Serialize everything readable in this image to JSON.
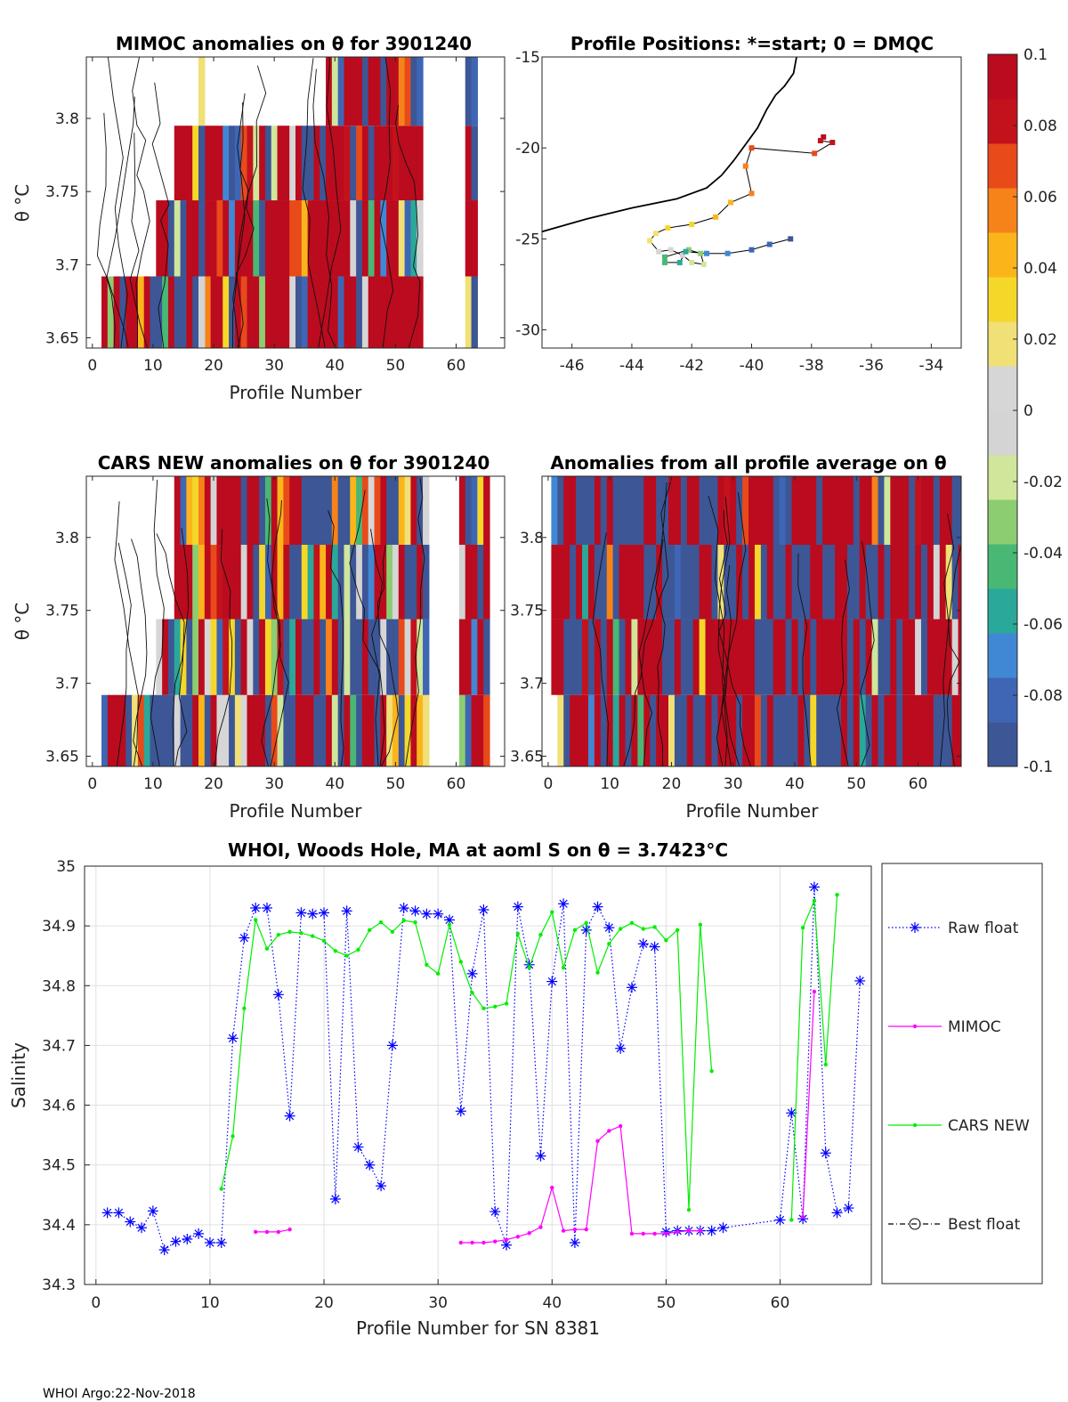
{
  "footer": "WHOI Argo:22-Nov-2018",
  "chart_data": [
    {
      "type": "heatmap",
      "title": "MIMOC anomalies on θ  for 3901240",
      "xlabel": "Profile Number",
      "ylabel": "θ °C",
      "xlim": [
        -1,
        68
      ],
      "ylim": [
        3.643,
        3.842
      ],
      "xticks": [
        0,
        10,
        20,
        30,
        40,
        50,
        60
      ],
      "yticks": [
        3.65,
        3.7,
        3.75,
        3.8
      ],
      "ytick_labels": [
        "3.65",
        "3.7",
        "3.75",
        "3.8"
      ],
      "theta_bands": [
        3.667,
        3.717,
        3.767,
        3.817
      ],
      "profile_ranges": [
        [
          2,
          54
        ],
        [
          11,
          54
        ],
        [
          14,
          54
        ],
        [
          39,
          54
        ]
      ],
      "extra_columns": [
        18,
        62,
        63
      ]
    },
    {
      "type": "scatter",
      "title": "Profile Positions: *=start; 0 = DMQC",
      "xlim": [
        -47,
        -33
      ],
      "ylim": [
        -31,
        -15
      ],
      "xticks": [
        -46,
        -44,
        -42,
        -40,
        -38,
        -36,
        -34
      ],
      "yticks": [
        -15,
        -20,
        -25,
        -30
      ],
      "track": [
        [
          -37.6,
          -19.4
        ],
        [
          -37.7,
          -19.6
        ],
        [
          -37.3,
          -19.7
        ],
        [
          -37.9,
          -20.3
        ],
        [
          -40.0,
          -20.0
        ],
        [
          -40.2,
          -21.0
        ],
        [
          -40.0,
          -22.5
        ],
        [
          -40.7,
          -23.0
        ],
        [
          -41.2,
          -23.8
        ],
        [
          -42.0,
          -24.2
        ],
        [
          -42.8,
          -24.4
        ],
        [
          -43.2,
          -24.7
        ],
        [
          -43.4,
          -25.1
        ],
        [
          -43.1,
          -25.7
        ],
        [
          -42.7,
          -25.6
        ],
        [
          -42.3,
          -25.9
        ],
        [
          -42.0,
          -26.3
        ],
        [
          -41.6,
          -26.4
        ],
        [
          -41.7,
          -25.8
        ],
        [
          -42.1,
          -25.6
        ],
        [
          -42.9,
          -26.0
        ],
        [
          -42.9,
          -26.3
        ],
        [
          -42.4,
          -26.3
        ],
        [
          -42.2,
          -25.7
        ],
        [
          -41.5,
          -25.8
        ],
        [
          -40.8,
          -25.8
        ],
        [
          -40.0,
          -25.6
        ],
        [
          -39.4,
          -25.3
        ],
        [
          -38.7,
          -25.0
        ]
      ],
      "coastline": [
        [
          -47,
          -24.6
        ],
        [
          -45.5,
          -23.9
        ],
        [
          -44.0,
          -23.3
        ],
        [
          -42.5,
          -22.8
        ],
        [
          -41.5,
          -22.2
        ],
        [
          -41.0,
          -21.5
        ],
        [
          -40.6,
          -20.7
        ],
        [
          -40.2,
          -19.8
        ],
        [
          -39.8,
          -18.9
        ],
        [
          -39.5,
          -17.9
        ],
        [
          -39.2,
          -17.1
        ],
        [
          -38.9,
          -16.6
        ],
        [
          -38.6,
          -15.9
        ],
        [
          -38.5,
          -15.0
        ]
      ]
    },
    {
      "type": "heatmap",
      "title": "CARS NEW anomalies on θ for 3901240",
      "xlabel": "Profile Number",
      "ylabel": "θ °C",
      "xlim": [
        -1,
        68
      ],
      "ylim": [
        3.643,
        3.842
      ],
      "xticks": [
        0,
        10,
        20,
        30,
        40,
        50,
        60
      ],
      "yticks": [
        3.65,
        3.7,
        3.75,
        3.8
      ],
      "ytick_labels": [
        "3.65",
        "3.7",
        "3.75",
        "3.8"
      ],
      "profile_ranges": [
        [
          2,
          55
        ],
        [
          11,
          55
        ],
        [
          14,
          55
        ],
        [
          14,
          55
        ]
      ],
      "extra_columns": [
        61,
        62,
        63,
        64,
        65
      ]
    },
    {
      "type": "heatmap",
      "title": "Anomalies from all profile average on θ",
      "xlabel": "Profile Number",
      "xlim": [
        -1,
        67
      ],
      "ylim": [
        3.643,
        3.842
      ],
      "xticks": [
        0,
        10,
        20,
        30,
        40,
        50,
        60
      ],
      "yticks": [
        3.65,
        3.7,
        3.75,
        3.8
      ],
      "ytick_labels": [
        "3.65",
        "3.7",
        "3.75",
        "3.8"
      ],
      "profile_ranges": [
        [
          2,
          67
        ],
        [
          1,
          67
        ],
        [
          1,
          67
        ],
        [
          1,
          67
        ]
      ]
    },
    {
      "type": "colorbar",
      "range": [
        -0.1,
        0.1
      ],
      "ticks": [
        "0.1",
        "0.08",
        "0.06",
        "0.04",
        "0.02",
        "0",
        "-0.02",
        "-0.04",
        "-0.06",
        "-0.08",
        "-0.1"
      ],
      "colors": [
        "#3d5696",
        "#3e66b5",
        "#4088d4",
        "#2aa899",
        "#48b874",
        "#8ccd72",
        "#d0e69b",
        "#d4d4d4",
        "#d6d6d6",
        "#f0e076",
        "#f5d72a",
        "#fbb51b",
        "#f6821a",
        "#e84a1a",
        "#c4121d",
        "#bb0b1e"
      ]
    },
    {
      "type": "line",
      "title": "WHOI, Woods Hole, MA at aoml S on θ = 3.7423°C",
      "xlabel": "Profile Number for SN 8381",
      "ylabel": "Salinity",
      "xlim": [
        -1,
        68
      ],
      "ylim": [
        34.3,
        35.0
      ],
      "xticks": [
        0,
        10,
        20,
        30,
        40,
        50,
        60
      ],
      "yticks": [
        34.3,
        34.4,
        34.5,
        34.6,
        34.7,
        34.8,
        34.9,
        35.0
      ],
      "ytick_labels": [
        "34.3",
        "34.4",
        "34.5",
        "34.6",
        "34.7",
        "34.8",
        "34.9",
        "35"
      ],
      "legend": [
        "Raw float",
        "MIMOC",
        "CARS NEW",
        "Best float"
      ],
      "series": [
        {
          "name": "Raw float",
          "color": "#0000ff",
          "style": "dotted",
          "marker": "asterisk",
          "x": [
            1,
            2,
            3,
            4,
            5,
            6,
            7,
            8,
            9,
            10,
            11,
            12,
            13,
            14,
            15,
            16,
            17,
            18,
            19,
            20,
            21,
            22,
            23,
            24,
            25,
            26,
            27,
            28,
            29,
            30,
            31,
            32,
            33,
            34,
            35,
            36,
            37,
            38,
            39,
            40,
            41,
            42,
            43,
            44,
            45,
            46,
            47,
            48,
            49,
            50,
            51,
            52,
            53,
            54,
            55,
            60,
            61,
            62,
            63,
            64,
            65,
            66,
            67
          ],
          "y": [
            34.42,
            34.42,
            34.405,
            34.395,
            34.423,
            34.358,
            34.372,
            34.376,
            34.385,
            34.37,
            34.37,
            34.712,
            34.88,
            34.93,
            34.93,
            34.785,
            34.582,
            34.922,
            34.92,
            34.922,
            34.443,
            34.925,
            34.53,
            34.5,
            34.465,
            34.7,
            34.93,
            34.925,
            34.92,
            34.92,
            34.91,
            34.59,
            34.82,
            34.927,
            34.422,
            34.366,
            34.932,
            34.835,
            34.515,
            34.807,
            34.937,
            34.37,
            34.893,
            34.932,
            34.897,
            34.695,
            34.797,
            34.87,
            34.865,
            34.388,
            34.39,
            34.39,
            34.39,
            34.39,
            34.395,
            34.408,
            34.587,
            34.41,
            34.965,
            34.52,
            34.42,
            34.428,
            34.808
          ]
        },
        {
          "name": "MIMOC",
          "color": "#ff00ff",
          "style": "solid",
          "marker": "dot",
          "x": [
            14,
            15,
            16,
            17,
            null,
            32,
            33,
            34,
            35,
            36,
            37,
            38,
            39,
            40,
            41,
            42,
            43,
            44,
            45,
            46,
            47,
            48,
            49,
            50,
            51,
            52,
            53,
            null,
            62,
            63
          ],
          "y": [
            34.388,
            34.388,
            34.388,
            34.392,
            null,
            34.37,
            34.37,
            34.37,
            34.372,
            34.375,
            34.38,
            34.386,
            34.396,
            34.462,
            34.39,
            34.392,
            34.392,
            34.54,
            34.557,
            34.565,
            34.385,
            34.385,
            34.385,
            34.385,
            34.388,
            34.39,
            34.39,
            null,
            34.413,
            34.79
          ]
        },
        {
          "name": "CARS NEW",
          "color": "#00ee00",
          "style": "solid",
          "marker": "dot",
          "x": [
            11,
            12,
            13,
            14,
            15,
            16,
            17,
            18,
            19,
            20,
            21,
            22,
            23,
            24,
            25,
            26,
            27,
            28,
            29,
            30,
            31,
            32,
            33,
            34,
            35,
            36,
            37,
            38,
            39,
            40,
            41,
            42,
            43,
            44,
            45,
            46,
            47,
            48,
            49,
            50,
            51,
            52,
            53,
            54,
            null,
            61,
            62,
            63,
            64,
            65
          ],
          "y": [
            34.46,
            34.548,
            34.762,
            34.91,
            34.862,
            34.885,
            34.89,
            34.888,
            34.883,
            34.875,
            34.858,
            34.85,
            34.86,
            34.893,
            34.906,
            34.89,
            34.909,
            34.906,
            34.835,
            34.82,
            34.902,
            34.84,
            34.788,
            34.762,
            34.765,
            34.77,
            34.887,
            34.83,
            34.885,
            34.923,
            34.83,
            34.893,
            34.905,
            34.822,
            34.87,
            34.895,
            34.905,
            34.895,
            34.898,
            34.876,
            34.893,
            34.425,
            34.902,
            34.657,
            null,
            34.408,
            34.897,
            34.942,
            34.668,
            34.952
          ]
        },
        {
          "name": "Best float",
          "color": "#000000",
          "style": "dashdot",
          "marker": "circle",
          "x": [],
          "y": []
        }
      ]
    }
  ]
}
